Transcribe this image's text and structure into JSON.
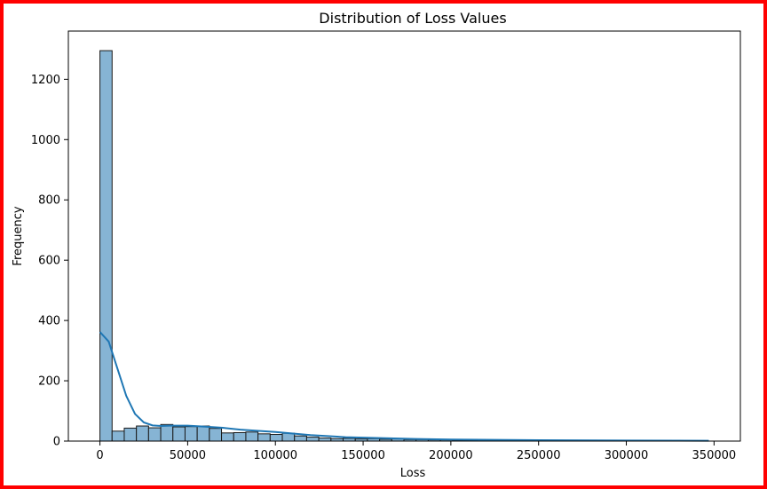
{
  "chart_data": {
    "type": "bar",
    "title": "Distribution of Loss Values",
    "xlabel": "Loss",
    "ylabel": "Frequency",
    "xlim": [
      -18000,
      365000
    ],
    "ylim": [
      0,
      1360
    ],
    "xticks": [
      0,
      50000,
      100000,
      150000,
      200000,
      250000,
      300000,
      350000
    ],
    "yticks": [
      0,
      200,
      400,
      600,
      800,
      1000,
      1200
    ],
    "bins": {
      "start": 0,
      "width": 6930,
      "counts": [
        1295,
        33,
        43,
        50,
        44,
        55,
        47,
        48,
        50,
        42,
        27,
        28,
        30,
        24,
        22,
        26,
        17,
        13,
        10,
        8,
        9,
        7,
        8,
        6,
        7,
        5,
        5,
        4,
        4,
        3,
        3,
        3,
        2,
        2,
        2,
        2,
        2,
        1,
        1,
        2,
        1,
        1,
        1,
        1,
        1,
        1,
        1,
        1,
        1,
        1
      ]
    },
    "kde": {
      "x": [
        0,
        5000,
        10000,
        15000,
        20000,
        25000,
        30000,
        35000,
        40000,
        50000,
        60000,
        70000,
        80000,
        100000,
        120000,
        140000,
        160000,
        180000,
        200000,
        250000,
        300000,
        347000
      ],
      "y": [
        362,
        330,
        240,
        150,
        90,
        62,
        52,
        50,
        51,
        51,
        48,
        44,
        38,
        30,
        20,
        13,
        10,
        7,
        5,
        3,
        2,
        1
      ]
    },
    "colors": {
      "bar_fill": "#86b4d4",
      "bar_edge": "#1a1a1a",
      "kde_line": "#1f77b4",
      "frame": "#ff0000"
    },
    "grid": false,
    "legend": "none"
  }
}
